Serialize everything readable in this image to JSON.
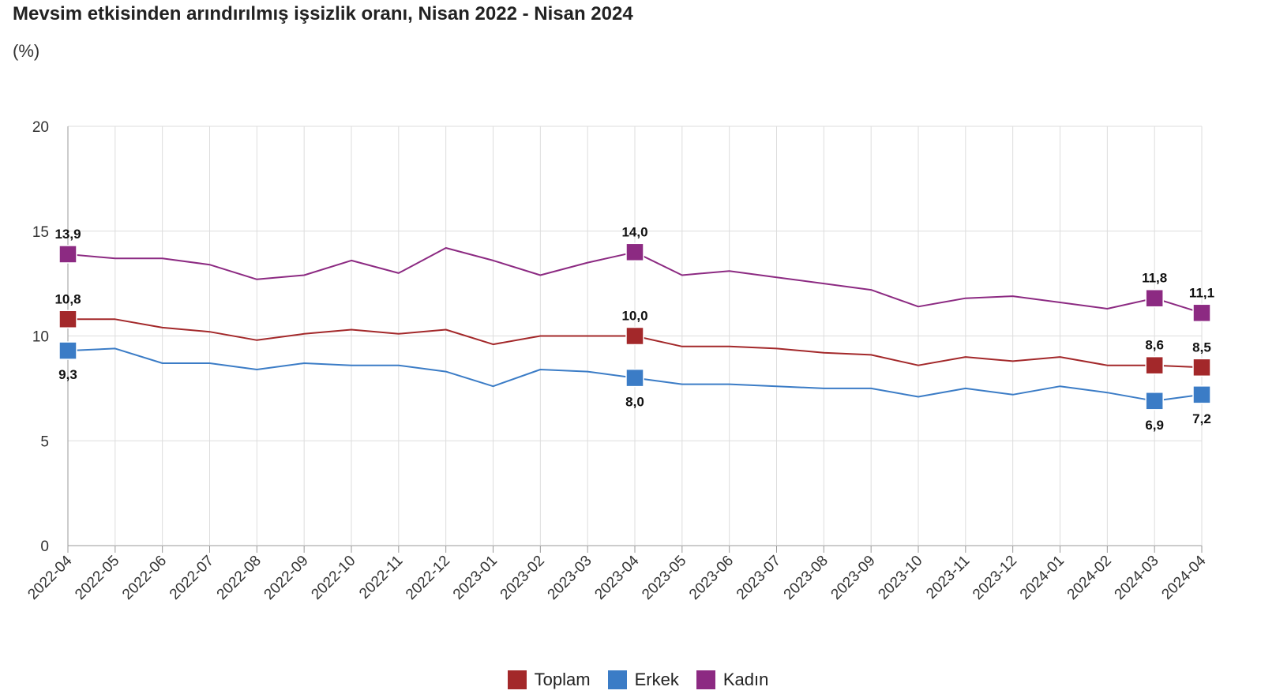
{
  "header": {
    "title": "Mevsim etkisinden arındırılmış işsizlik oranı, Nisan 2022 - Nisan 2024",
    "unit": "(%)"
  },
  "colors": {
    "toplam": "#a3282a",
    "erkek": "#3b7cc6",
    "kadin": "#8c2a82",
    "grid": "#dddddd",
    "axis": "#999999"
  },
  "chart_data": {
    "type": "line",
    "title": "Mevsim etkisinden arındırılmış işsizlik oranı, Nisan 2022 - Nisan 2024",
    "ylabel": "(%)",
    "xlabel": "",
    "ylim": [
      0,
      20
    ],
    "yticks": [
      "0",
      "5",
      "10",
      "15",
      "20"
    ],
    "grid": true,
    "legend_position": "bottom-center",
    "categories": [
      "2022-04",
      "2022-05",
      "2022-06",
      "2022-07",
      "2022-08",
      "2022-09",
      "2022-10",
      "2022-11",
      "2022-12",
      "2023-01",
      "2023-02",
      "2023-03",
      "2023-04",
      "2023-05",
      "2023-06",
      "2023-07",
      "2023-08",
      "2023-09",
      "2023-10",
      "2023-11",
      "2023-12",
      "2024-01",
      "2024-02",
      "2024-03",
      "2024-04"
    ],
    "series": [
      {
        "name": "Toplam",
        "color": "#a3282a",
        "values": [
          10.8,
          10.8,
          10.4,
          10.2,
          9.8,
          10.1,
          10.3,
          10.1,
          10.3,
          9.6,
          10.0,
          10.0,
          10.0,
          9.5,
          9.5,
          9.4,
          9.2,
          9.1,
          8.6,
          9.0,
          8.8,
          9.0,
          8.6,
          8.6,
          8.5
        ]
      },
      {
        "name": "Erkek",
        "color": "#3b7cc6",
        "values": [
          9.3,
          9.4,
          8.7,
          8.7,
          8.4,
          8.7,
          8.6,
          8.6,
          8.3,
          7.6,
          8.4,
          8.3,
          8.0,
          7.7,
          7.7,
          7.6,
          7.5,
          7.5,
          7.1,
          7.5,
          7.2,
          7.6,
          7.3,
          6.9,
          7.2
        ]
      },
      {
        "name": "Kadın",
        "color": "#8c2a82",
        "values": [
          13.9,
          13.7,
          13.7,
          13.4,
          12.7,
          12.9,
          13.6,
          13.0,
          14.2,
          13.6,
          12.9,
          13.5,
          14.0,
          12.9,
          13.1,
          12.8,
          12.5,
          12.2,
          11.4,
          11.8,
          11.9,
          11.6,
          11.3,
          11.8,
          11.1
        ]
      }
    ],
    "data_labels": [
      {
        "series": "Kadın",
        "category": "2022-04",
        "text": "13,9",
        "position": "above"
      },
      {
        "series": "Toplam",
        "category": "2022-04",
        "text": "10,8",
        "position": "above"
      },
      {
        "series": "Erkek",
        "category": "2022-04",
        "text": "9,3",
        "position": "below"
      },
      {
        "series": "Kadın",
        "category": "2023-04",
        "text": "14,0",
        "position": "above"
      },
      {
        "series": "Toplam",
        "category": "2023-04",
        "text": "10,0",
        "position": "above"
      },
      {
        "series": "Erkek",
        "category": "2023-04",
        "text": "8,0",
        "position": "below"
      },
      {
        "series": "Kadın",
        "category": "2024-03",
        "text": "11,8",
        "position": "above"
      },
      {
        "series": "Toplam",
        "category": "2024-03",
        "text": "8,6",
        "position": "above"
      },
      {
        "series": "Erkek",
        "category": "2024-03",
        "text": "6,9",
        "position": "below"
      },
      {
        "series": "Kadın",
        "category": "2024-04",
        "text": "11,1",
        "position": "above"
      },
      {
        "series": "Toplam",
        "category": "2024-04",
        "text": "8,5",
        "position": "above"
      },
      {
        "series": "Erkek",
        "category": "2024-04",
        "text": "7,2",
        "position": "below"
      }
    ]
  },
  "legend": {
    "items": [
      {
        "label": "Toplam",
        "color": "#a3282a"
      },
      {
        "label": "Erkek",
        "color": "#3b7cc6"
      },
      {
        "label": "Kadın",
        "color": "#8c2a82"
      }
    ]
  }
}
